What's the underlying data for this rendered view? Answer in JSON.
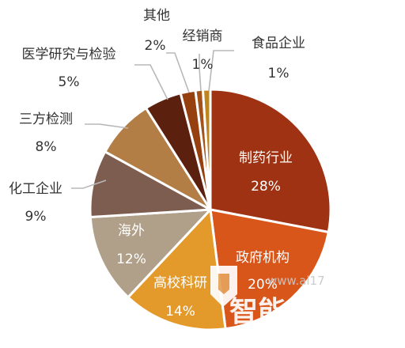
{
  "chart_data": {
    "type": "pie",
    "start_angle_deg": 0,
    "direction": "clockwise",
    "title": "",
    "slices": [
      {
        "label": "制药行业",
        "value": 28,
        "value_label": "28%",
        "color": "#9e3212",
        "label_inside": true
      },
      {
        "label": "政府机构",
        "value": 20,
        "value_label": "20%",
        "color": "#d9561b",
        "label_inside": true
      },
      {
        "label": "高校科研",
        "value": 14,
        "value_label": "14%",
        "color": "#e39a2b",
        "label_inside": true
      },
      {
        "label": "海外",
        "value": 12,
        "value_label": "12%",
        "color": "#b0a089",
        "label_inside": true
      },
      {
        "label": "化工企业",
        "value": 9,
        "value_label": "9%",
        "color": "#7d5d4f",
        "label_inside": false
      },
      {
        "label": "三方检测",
        "value": 8,
        "value_label": "8%",
        "color": "#b37d46",
        "label_inside": false
      },
      {
        "label": "医学研究与检验",
        "value": 5,
        "value_label": "5%",
        "color": "#5c200e",
        "label_inside": false
      },
      {
        "label": "其他",
        "value": 2,
        "value_label": "2%",
        "color": "#96400f",
        "label_inside": false
      },
      {
        "label": "经销商",
        "value": 1,
        "value_label": "1%",
        "color": "#a4521a",
        "label_inside": false
      },
      {
        "label": "食品企业",
        "value": 1,
        "value_label": "1%",
        "color": "#c0851e",
        "label_inside": false
      }
    ]
  },
  "watermark": {
    "url_text": "www.ai17",
    "brand_text": "智能"
  }
}
